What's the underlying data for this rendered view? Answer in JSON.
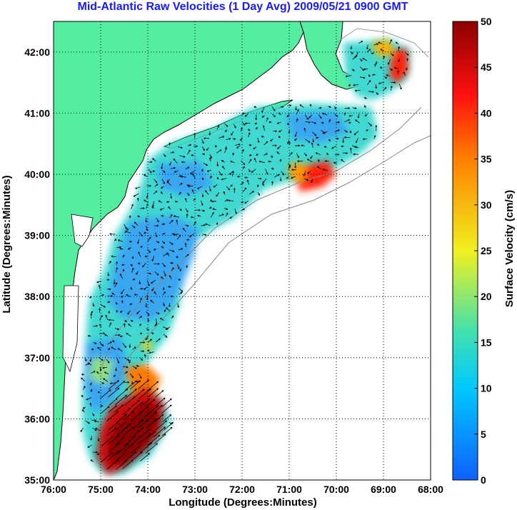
{
  "title": "Mid-Atlantic Raw Velocities (1 Day Avg) 2009/05/21 0900 GMT",
  "x_axis": {
    "label": "Longitude (Degrees:Minutes)",
    "ticks": [
      "76:00",
      "75:00",
      "74:00",
      "73:00",
      "72:00",
      "71:00",
      "70:00",
      "69:00",
      "68:00"
    ]
  },
  "y_axis": {
    "label": "Latitude (Degrees:Minutes)",
    "ticks": [
      "35:00",
      "36:00",
      "37:00",
      "38:00",
      "39:00",
      "40:00",
      "41:00",
      "42:00"
    ]
  },
  "colorbar": {
    "label": "Surface Velocity (cm/s)",
    "ticks": [
      "0",
      "5",
      "10",
      "15",
      "20",
      "25",
      "30",
      "35",
      "40",
      "45",
      "50"
    ],
    "range": [
      0,
      50
    ]
  },
  "map_extent": {
    "lon": [
      -76,
      -68
    ],
    "lat": [
      35,
      42.5
    ]
  },
  "colors": {
    "land": "#55eea0",
    "coast": "#000000",
    "title": "#1a1aff",
    "colormap": [
      "#1060ff",
      "#00c8ff",
      "#40e0b0",
      "#f0f020",
      "#ff8000",
      "#ff1010",
      "#8b0000"
    ]
  },
  "chart_data": {
    "type": "heatmap",
    "variable": "Surface Velocity (cm/s)",
    "xlabel": "Longitude (Degrees:Minutes)",
    "ylabel": "Latitude (Degrees:Minutes)",
    "xlim": [
      -76,
      -68
    ],
    "ylim": [
      35,
      42.5
    ],
    "clim": [
      0,
      50
    ],
    "regions": [
      {
        "lon": [
          -71.0,
          -70.3
        ],
        "lat": [
          39.7,
          40.2
        ],
        "velocity": 42
      },
      {
        "lon": [
          -75.2,
          -74.3
        ],
        "lat": [
          35.0,
          36.5
        ],
        "velocity": 48
      },
      {
        "lon": [
          -74.6,
          -74.1
        ],
        "lat": [
          36.3,
          36.8
        ],
        "velocity": 38
      },
      {
        "lon": [
          -69.0,
          -68.5
        ],
        "lat": [
          41.4,
          42.0
        ],
        "velocity": 40
      },
      {
        "lon": [
          -74.6,
          -73.0
        ],
        "lat": [
          37.5,
          39.5
        ],
        "velocity": 6
      },
      {
        "lon": [
          -73.5,
          -70.0
        ],
        "lat": [
          40.0,
          41.0
        ],
        "velocity": 12
      }
    ]
  }
}
